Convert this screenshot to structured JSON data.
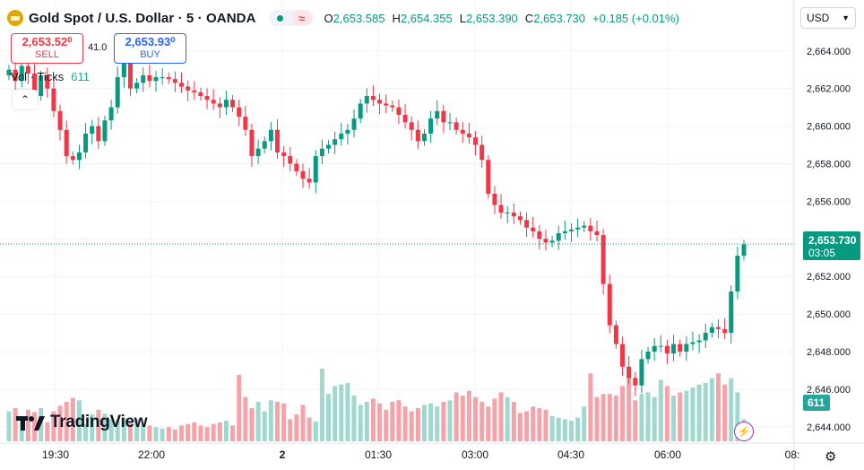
{
  "header": {
    "symbol": "Gold Spot / U.S. Dollar · 5 · OANDA",
    "open_label": "O",
    "open": "2,653.585",
    "high_label": "H",
    "high": "2,654.355",
    "low_label": "L",
    "low": "2,653.390",
    "close_label": "C",
    "close": "2,653.730",
    "change": "+0.185 (+0.01%)",
    "status_icon": "dot-icon",
    "tilde_icon": "≈"
  },
  "trade": {
    "sell_price": "2,653.52⁰",
    "sell_label": "SELL",
    "spread": "41.0",
    "buy_price": "2,653.93⁰",
    "buy_label": "BUY"
  },
  "volume_legend": {
    "label": "Vol · Ticks",
    "value": "611"
  },
  "currency_select": "USD",
  "last_price": {
    "price": "2,653.730",
    "countdown": "03:05"
  },
  "last_volume": "611",
  "logo": "TradingView",
  "colors": {
    "up": "#089981",
    "down": "#f23645",
    "vol_up": "#9fd8cf",
    "vol_down": "#f5a3a8",
    "grid": "#f0f3fa"
  },
  "chart_data": {
    "type": "candlestick",
    "y_ticks": [
      "2,664.000",
      "2,662.000",
      "2,660.000",
      "2,658.000",
      "2,656.000",
      "2,654.000",
      "2,652.000",
      "2,650.000",
      "2,648.000",
      "2,646.000",
      "2,644.000"
    ],
    "ylim": [
      2643.8,
      2664.8
    ],
    "x_ticks": [
      "19:30",
      "22:00",
      "2",
      "01:30",
      "03:00",
      "04:30",
      "06:00",
      "08:"
    ],
    "close_price_line": 2653.73,
    "close_series": [
      2663.0,
      2662.4,
      2663.2,
      2662.8,
      2661.6,
      2662.7,
      2662.0,
      2660.8,
      2659.8,
      2658.4,
      2658.2,
      2658.6,
      2659.6,
      2660.0,
      2659.2,
      2660.3,
      2661.0,
      2662.6,
      2663.4,
      2662.0,
      2662.3,
      2662.7,
      2662.4,
      2662.6,
      2662.6,
      2662.5,
      2662.3,
      2662.1,
      2661.9,
      2661.8,
      2661.6,
      2661.4,
      2661.2,
      2661.0,
      2661.4,
      2661.0,
      2660.5,
      2659.8,
      2658.4,
      2658.8,
      2659.2,
      2659.8,
      2658.6,
      2658.4,
      2658.0,
      2657.6,
      2657.2,
      2657.0,
      2658.4,
      2658.8,
      2659.0,
      2659.3,
      2659.6,
      2659.8,
      2660.4,
      2661.2,
      2661.6,
      2661.4,
      2661.2,
      2661.1,
      2661.0,
      2660.6,
      2660.2,
      2659.8,
      2659.2,
      2659.6,
      2660.4,
      2660.8,
      2660.2,
      2660.2,
      2659.8,
      2659.6,
      2659.4,
      2659.0,
      2658.2,
      2656.4,
      2655.8,
      2655.4,
      2655.4,
      2655.2,
      2655.0,
      2654.6,
      2654.4,
      2654.0,
      2653.8,
      2653.9,
      2654.3,
      2654.4,
      2654.5,
      2654.6,
      2654.7,
      2654.4,
      2654.2,
      2651.6,
      2649.4,
      2648.4,
      2647.2,
      2646.6,
      2646.2,
      2647.6,
      2648.0,
      2648.3,
      2648.3,
      2647.9,
      2648.4,
      2648.0,
      2648.4,
      2648.5,
      2648.6,
      2649.0,
      2649.3,
      2649.2,
      2649.0,
      2651.2,
      2653.1,
      2653.7
    ],
    "volume_series": [
      38,
      42,
      30,
      40,
      37,
      42,
      24,
      38,
      45,
      50,
      55,
      52,
      22,
      34,
      40,
      35,
      28,
      26,
      30,
      24,
      28,
      22,
      20,
      18,
      16,
      18,
      15,
      20,
      22,
      24,
      20,
      18,
      22,
      24,
      26,
      20,
      84,
      56,
      42,
      50,
      38,
      52,
      50,
      48,
      28,
      34,
      46,
      30,
      25,
      92,
      60,
      70,
      72,
      74,
      58,
      46,
      50,
      54,
      48,
      40,
      50,
      52,
      44,
      38,
      42,
      46,
      48,
      44,
      50,
      52,
      62,
      58,
      64,
      56,
      50,
      44,
      54,
      62,
      56,
      50,
      36,
      38,
      44,
      42,
      40,
      32,
      30,
      28,
      26,
      30,
      44,
      86,
      56,
      60,
      60,
      58,
      70,
      84,
      52,
      60,
      62,
      56,
      78,
      70,
      58,
      62,
      64,
      68,
      72,
      74,
      80,
      86,
      72,
      80,
      62,
      28
    ]
  }
}
